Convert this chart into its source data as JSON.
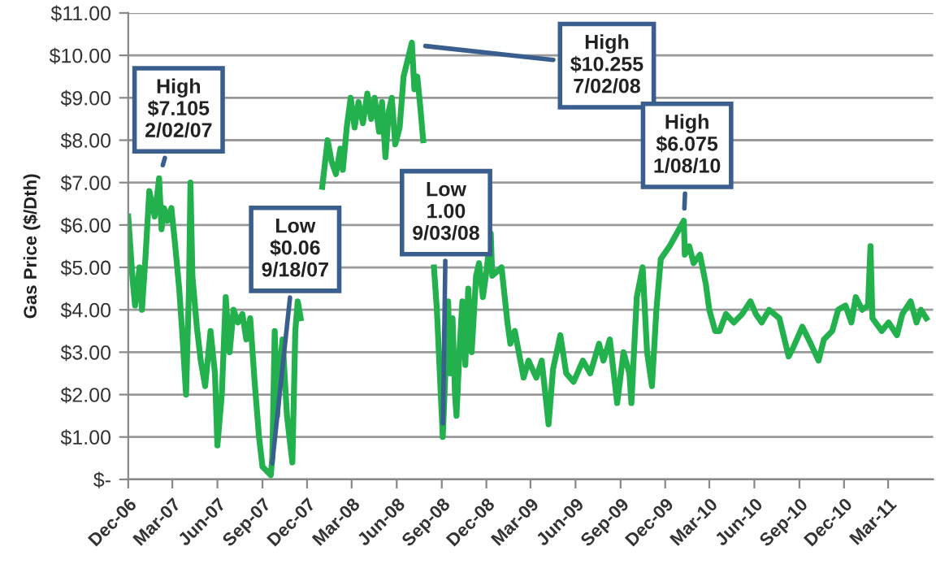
{
  "chart_data": {
    "type": "line",
    "ylabel": "Gas Price ($/Dth)",
    "grid": "y",
    "marker": "none",
    "line_style": "solid",
    "xlim": [
      "2006-12-01",
      "2011-06-01"
    ],
    "ylim": [
      0,
      11
    ],
    "yticks": [
      {
        "value": 0,
        "label": "$-"
      },
      {
        "value": 1,
        "label": "$1.00"
      },
      {
        "value": 2,
        "label": "$2.00"
      },
      {
        "value": 3,
        "label": "$3.00"
      },
      {
        "value": 4,
        "label": "$4.00"
      },
      {
        "value": 5,
        "label": "$5.00"
      },
      {
        "value": 6,
        "label": "$6.00"
      },
      {
        "value": 7,
        "label": "$7.00"
      },
      {
        "value": 8,
        "label": "$8.00"
      },
      {
        "value": 9,
        "label": "$9.00"
      },
      {
        "value": 10,
        "label": "$10.00"
      },
      {
        "value": 11,
        "label": "$11.00"
      }
    ],
    "xticks": [
      {
        "value": "2006-12-01",
        "label": "Dec-06"
      },
      {
        "value": "2007-03-01",
        "label": "Mar-07"
      },
      {
        "value": "2007-06-01",
        "label": "Jun-07"
      },
      {
        "value": "2007-09-01",
        "label": "Sep-07"
      },
      {
        "value": "2007-12-01",
        "label": "Dec-07"
      },
      {
        "value": "2008-03-01",
        "label": "Mar-08"
      },
      {
        "value": "2008-06-01",
        "label": "Jun-08"
      },
      {
        "value": "2008-09-01",
        "label": "Sep-08"
      },
      {
        "value": "2008-12-01",
        "label": "Dec-08"
      },
      {
        "value": "2009-03-01",
        "label": "Mar-09"
      },
      {
        "value": "2009-06-01",
        "label": "Jun-09"
      },
      {
        "value": "2009-09-01",
        "label": "Sep-09"
      },
      {
        "value": "2009-12-01",
        "label": "Dec-09"
      },
      {
        "value": "2010-03-01",
        "label": "Mar-10"
      },
      {
        "value": "2010-06-01",
        "label": "Jun-10"
      },
      {
        "value": "2010-09-01",
        "label": "Sep-10"
      },
      {
        "value": "2010-12-01",
        "label": "Dec-10"
      },
      {
        "value": "2011-03-01",
        "label": "Mar-11"
      }
    ],
    "annotations": [
      {
        "text": "High\n$7.105\n2/02/07",
        "x": "2007-02-02",
        "y": 7.105
      },
      {
        "text": "Low\n$0.06\n9/18/07",
        "x": "2007-09-18",
        "y": 0.06
      },
      {
        "text": "High\n$10.255\n7/02/08",
        "x": "2008-07-02",
        "y": 10.255
      },
      {
        "text": "Low\n1.00\n9/03/08",
        "x": "2008-09-03",
        "y": 1.0
      },
      {
        "text": "High\n$6.075\n1/08/10",
        "x": "2010-01-08",
        "y": 6.075
      }
    ],
    "series": [
      {
        "color": "#22b14c",
        "x": [
          "2006-12-01",
          "2006-12-10",
          "2006-12-15",
          "2006-12-24",
          "2006-12-29",
          "2007-01-05",
          "2007-01-13",
          "2007-01-24",
          "2007-02-02",
          "2007-02-07",
          "2007-02-12",
          "2007-02-19",
          "2007-02-27",
          "2007-03-07",
          "2007-03-15",
          "2007-03-21",
          "2007-03-29",
          "2007-04-04",
          "2007-04-07",
          "2007-04-11",
          "2007-04-20",
          "2007-04-28",
          "2007-05-07",
          "2007-05-18",
          "2007-05-27",
          "2007-06-01",
          "2007-06-10",
          "2007-06-18",
          "2007-06-26",
          "2007-07-04",
          "2007-07-13",
          "2007-07-22",
          "2007-07-30",
          "2007-08-07",
          "2007-08-16",
          "2007-08-25",
          "2007-09-01",
          "2007-09-18",
          "2007-09-21",
          "2007-09-26",
          "2007-10-01",
          "2007-10-05",
          "2007-10-12",
          "2007-10-21",
          "2007-11-01",
          "2007-11-07",
          "2007-11-12",
          "2007-11-18",
          "2007-11-24",
          "2007-12-10",
          "2007-12-21",
          "2008-01-01",
          "2008-01-12",
          "2008-01-20",
          "2008-01-29",
          "2008-02-07",
          "2008-02-12",
          "2008-02-20",
          "2008-02-28",
          "2008-03-07",
          "2008-03-15",
          "2008-03-24",
          "2008-04-02",
          "2008-04-10",
          "2008-04-17",
          "2008-04-26",
          "2008-05-02",
          "2008-05-09",
          "2008-05-16",
          "2008-05-22",
          "2008-05-29",
          "2008-06-07",
          "2008-06-15",
          "2008-07-02",
          "2008-07-07",
          "2008-07-13",
          "2008-07-19",
          "2008-07-25",
          "2008-08-01",
          "2008-08-10",
          "2008-08-16",
          "2008-08-22",
          "2008-09-03",
          "2008-09-10",
          "2008-09-14",
          "2008-09-18",
          "2008-09-23",
          "2008-09-28",
          "2008-10-01",
          "2008-10-07",
          "2008-10-13",
          "2008-10-19",
          "2008-10-25",
          "2008-11-01",
          "2008-11-10",
          "2008-11-16",
          "2008-11-24",
          "2008-12-01",
          "2008-12-10",
          "2008-12-13",
          "2009-01-01",
          "2009-01-13",
          "2009-01-19",
          "2009-01-28",
          "2009-02-15",
          "2009-02-25",
          "2009-03-13",
          "2009-03-24",
          "2009-04-07",
          "2009-04-16",
          "2009-05-01",
          "2009-05-13",
          "2009-05-28",
          "2009-06-16",
          "2009-07-01",
          "2009-07-19",
          "2009-07-28",
          "2009-08-10",
          "2009-08-25",
          "2009-09-07",
          "2009-09-19",
          "2009-09-23",
          "2009-10-04",
          "2009-10-16",
          "2009-10-25",
          "2009-11-04",
          "2009-11-13",
          "2009-11-22",
          "2009-12-10",
          "2010-01-08",
          "2010-01-10",
          "2010-01-19",
          "2010-01-28",
          "2010-02-10",
          "2010-02-22",
          "2010-03-01",
          "2010-03-13",
          "2010-03-22",
          "2010-04-04",
          "2010-04-20",
          "2010-05-07",
          "2010-05-24",
          "2010-06-04",
          "2010-06-16",
          "2010-07-01",
          "2010-07-22",
          "2010-08-10",
          "2010-08-19",
          "2010-09-07",
          "2010-09-24",
          "2010-10-10",
          "2010-10-21",
          "2010-11-07",
          "2010-11-19",
          "2010-12-04",
          "2010-12-16",
          "2010-12-25",
          "2011-01-07",
          "2011-01-19",
          "2011-01-24",
          "2011-01-28",
          "2011-02-16",
          "2011-03-02",
          "2011-03-19",
          "2011-03-30",
          "2011-04-16",
          "2011-04-28",
          "2011-05-07",
          "2011-05-18"
        ],
        "values": [
          6.2,
          4.7,
          4.1,
          5.0,
          4.0,
          5.2,
          6.8,
          6.2,
          7.1,
          5.9,
          6.4,
          6.1,
          6.4,
          5.5,
          4.5,
          3.5,
          2.0,
          4.5,
          7.0,
          4.8,
          3.6,
          2.8,
          2.2,
          3.5,
          2.5,
          0.8,
          2.0,
          4.3,
          3.0,
          4.0,
          3.7,
          3.9,
          3.3,
          3.8,
          2.3,
          1.0,
          0.3,
          0.1,
          0.5,
          3.5,
          1.5,
          2.5,
          3.3,
          1.5,
          0.4,
          3.5,
          4.2,
          3.8,
          null,
          null,
          null,
          6.9,
          8.0,
          7.5,
          7.2,
          7.8,
          7.3,
          8.3,
          9.0,
          8.3,
          8.9,
          8.4,
          9.1,
          8.5,
          9.0,
          8.2,
          8.9,
          7.6,
          8.7,
          9.0,
          7.9,
          8.3,
          9.5,
          10.3,
          9.2,
          9.5,
          8.8,
          8.0,
          null,
          null,
          5.0,
          4.0,
          1.0,
          3.0,
          4.2,
          2.5,
          3.8,
          2.0,
          1.5,
          3.0,
          4.2,
          2.7,
          4.5,
          3.0,
          4.8,
          5.1,
          4.3,
          4.9,
          5.8,
          4.8,
          5.0,
          3.7,
          3.2,
          3.5,
          2.4,
          2.8,
          2.4,
          2.8,
          1.3,
          2.6,
          3.4,
          2.5,
          2.3,
          2.8,
          2.5,
          3.2,
          2.8,
          3.3,
          1.8,
          3.0,
          2.5,
          1.8,
          4.3,
          5.0,
          3.0,
          2.2,
          4.0,
          5.2,
          5.5,
          6.1,
          5.3,
          5.5,
          5.1,
          5.3,
          4.6,
          4.0,
          3.5,
          3.5,
          3.9,
          3.7,
          3.9,
          4.2,
          3.9,
          3.7,
          4.0,
          3.8,
          2.9,
          3.1,
          3.6,
          3.2,
          2.8,
          3.3,
          3.5,
          4.0,
          4.1,
          3.7,
          4.3,
          4.0,
          4.1,
          5.5,
          3.8,
          3.5,
          3.7,
          3.4,
          3.9,
          4.2,
          3.7,
          4.0,
          3.8
        ]
      }
    ]
  }
}
